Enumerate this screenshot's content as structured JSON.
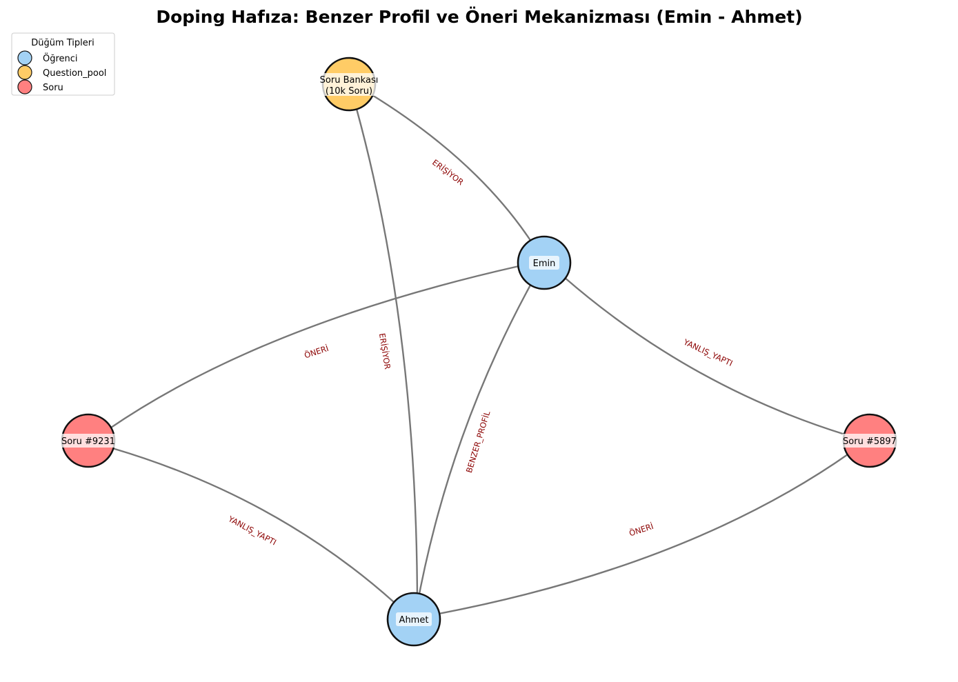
{
  "title": "Doping Hafıza: Benzer Profil ve Öneri Mekanizması (Emin - Ahmet)",
  "colors": {
    "student": "#a3d2f5",
    "pool": "#ffcc66",
    "question": "#ff8080",
    "edge": "#777777",
    "edge_label": "#8b0000"
  },
  "legend": {
    "title": "Düğüm Tipleri",
    "items": [
      {
        "label": "Öğrenci",
        "color": "#a3d2f5"
      },
      {
        "label": "Question_pool",
        "color": "#ffcc66"
      },
      {
        "label": "Soru",
        "color": "#ff8080"
      }
    ]
  },
  "nodes": {
    "pool": {
      "lines": [
        "Soru Bankası",
        "(10k Soru)"
      ],
      "type": "Question_pool"
    },
    "emin": {
      "lines": [
        "Emin"
      ],
      "type": "Öğrenci"
    },
    "ahmet": {
      "lines": [
        "Ahmet"
      ],
      "type": "Öğrenci"
    },
    "q9231": {
      "lines": [
        "Soru #9231"
      ],
      "type": "Soru"
    },
    "q5897": {
      "lines": [
        "Soru #5897"
      ],
      "type": "Soru"
    }
  },
  "edges": [
    {
      "id": "emin_pool",
      "source": "emin",
      "target": "pool",
      "label": "ERİŞİYOR"
    },
    {
      "id": "ahmet_pool",
      "source": "ahmet",
      "target": "pool",
      "label": "ERİŞİYOR"
    },
    {
      "id": "emin_ahmet",
      "source": "emin",
      "target": "ahmet",
      "label": "BENZER_PROFİL"
    },
    {
      "id": "emin_q9231",
      "source": "emin",
      "target": "q9231",
      "label": "ÖNERİ"
    },
    {
      "id": "emin_q5897",
      "source": "emin",
      "target": "q5897",
      "label": "YANLIŞ_YAPTI"
    },
    {
      "id": "ahmet_q9231",
      "source": "ahmet",
      "target": "q9231",
      "label": "YANLIŞ_YAPTI"
    },
    {
      "id": "ahmet_q5897",
      "source": "ahmet",
      "target": "q5897",
      "label": "ÖNERİ"
    }
  ]
}
